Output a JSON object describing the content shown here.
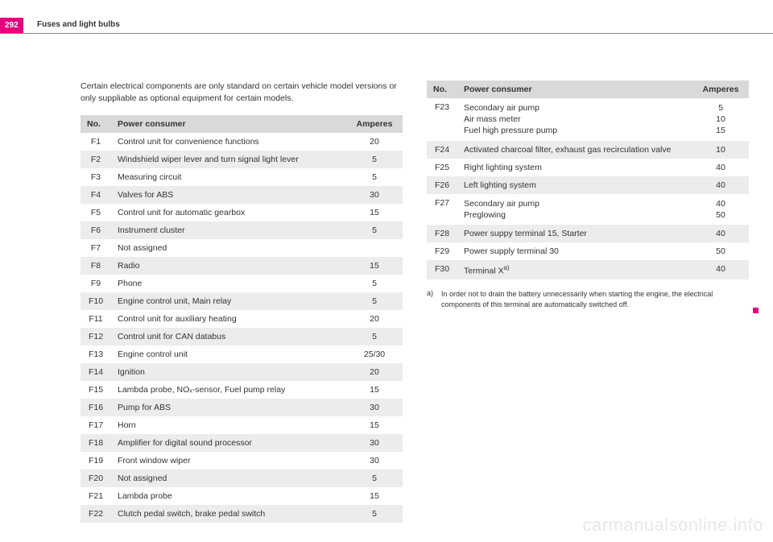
{
  "page": {
    "number": "292",
    "section": "Fuses and light bulbs"
  },
  "intro": "Certain electrical components are only standard on certain vehicle model versions or only suppliable as optional equipment for certain models.",
  "table_headers": {
    "no": "No.",
    "consumer": "Power consumer",
    "amperes": "Amperes"
  },
  "left_rows": [
    {
      "no": "F1",
      "consumer": "Control unit for convenience functions",
      "amp": "20"
    },
    {
      "no": "F2",
      "consumer": "Windshield wiper lever and turn signal light lever",
      "amp": "5"
    },
    {
      "no": "F3",
      "consumer": "Measuring circuit",
      "amp": "5"
    },
    {
      "no": "F4",
      "consumer": "Valves for ABS",
      "amp": "30"
    },
    {
      "no": "F5",
      "consumer": "Control unit for automatic gearbox",
      "amp": "15"
    },
    {
      "no": "F6",
      "consumer": "Instrument cluster",
      "amp": "5"
    },
    {
      "no": "F7",
      "consumer": "Not assigned",
      "amp": ""
    },
    {
      "no": "F8",
      "consumer": "Radio",
      "amp": "15"
    },
    {
      "no": "F9",
      "consumer": "Phone",
      "amp": "5"
    },
    {
      "no": "F10",
      "consumer": "Engine control unit, Main relay",
      "amp": "5"
    },
    {
      "no": "F11",
      "consumer": "Control unit for auxiliary heating",
      "amp": "20"
    },
    {
      "no": "F12",
      "consumer": "Control unit for CAN databus",
      "amp": "5"
    },
    {
      "no": "F13",
      "consumer": "Engine control unit",
      "amp": "25/30"
    },
    {
      "no": "F14",
      "consumer": "Ignition",
      "amp": "20"
    },
    {
      "no": "F15",
      "consumer": "Lambda probe, NOₓ-sensor, Fuel pump relay",
      "amp": "15"
    },
    {
      "no": "F16",
      "consumer": "Pump for ABS",
      "amp": "30"
    },
    {
      "no": "F17",
      "consumer": "Horn",
      "amp": "15"
    },
    {
      "no": "F18",
      "consumer": "Amplifier for digital sound processor",
      "amp": "30"
    },
    {
      "no": "F19",
      "consumer": "Front window wiper",
      "amp": "30"
    },
    {
      "no": "F20",
      "consumer": "Not assigned",
      "amp": "5"
    },
    {
      "no": "F21",
      "consumer": "Lambda probe",
      "amp": "15"
    },
    {
      "no": "F22",
      "consumer": "Clutch pedal switch, brake pedal switch",
      "amp": "5"
    }
  ],
  "right_rows": [
    {
      "no": "F23",
      "consumer": "Secondary air pump\nAir mass meter\nFuel high pressure pump",
      "amp": "5\n10\n15"
    },
    {
      "no": "F24",
      "consumer": "Activated charcoal filter, exhaust gas recirculation valve",
      "amp": "10"
    },
    {
      "no": "F25",
      "consumer": "Right lighting system",
      "amp": "40"
    },
    {
      "no": "F26",
      "consumer": "Left lighting system",
      "amp": "40"
    },
    {
      "no": "F27",
      "consumer": "Secondary air pump\nPreglowing",
      "amp": "40\n50"
    },
    {
      "no": "F28",
      "consumer": "Power suppy terminal 15, Starter",
      "amp": "40"
    },
    {
      "no": "F29",
      "consumer": "Power supply terminal 30",
      "amp": "50"
    },
    {
      "no": "F30",
      "consumer": "Terminal X",
      "amp": "40",
      "sup": "a)"
    }
  ],
  "footnote": {
    "mark": "a)",
    "text": "In order not to drain the battery unnecessarily when starting the engine, the electrical components of this terminal are automatically switched off."
  },
  "watermark": "carmanualsonline.info"
}
